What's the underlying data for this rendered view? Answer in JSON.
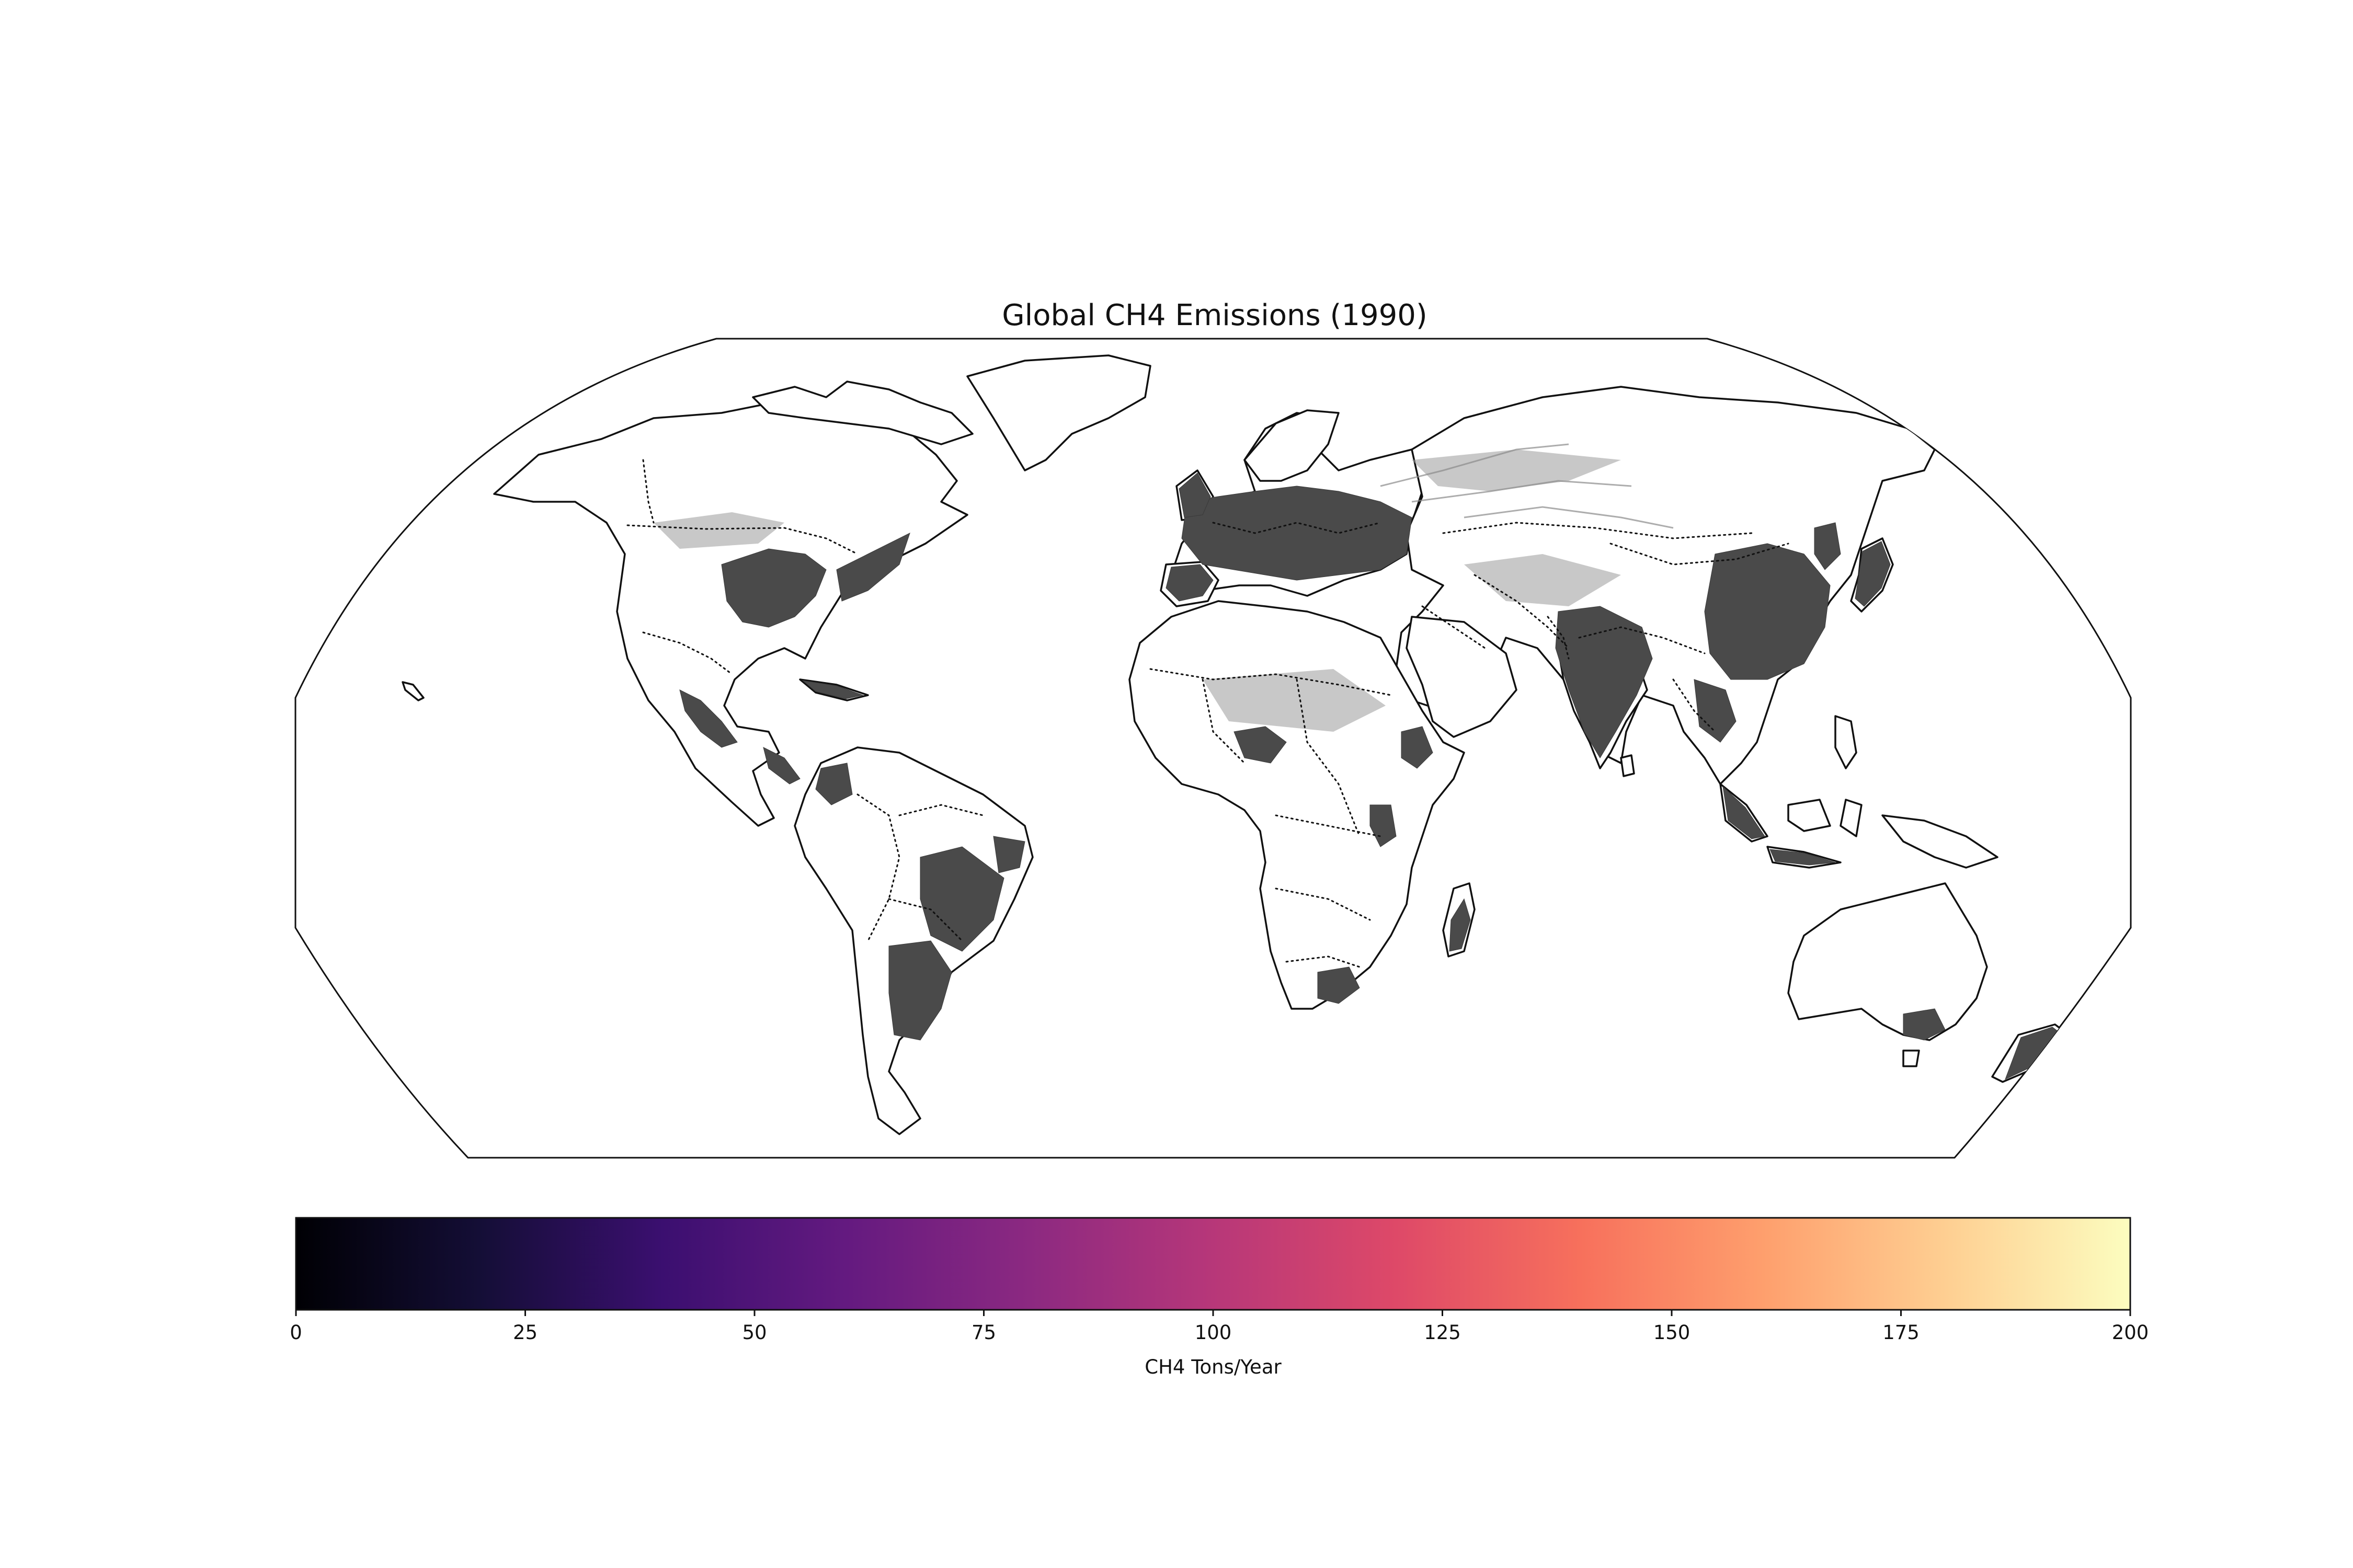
{
  "title": "Global CH4 Emissions (1990)",
  "colorbar": {
    "label": "CH4 Tons/Year",
    "min": 0,
    "max": 200,
    "colormap": "magma",
    "ticks": [
      "0",
      "25",
      "50",
      "75",
      "100",
      "125",
      "150",
      "175",
      "200"
    ]
  },
  "map": {
    "projection": "Robinson",
    "coastlines": true,
    "country_borders": "dotted",
    "emission_shade_color": "#4a4a4a"
  }
}
